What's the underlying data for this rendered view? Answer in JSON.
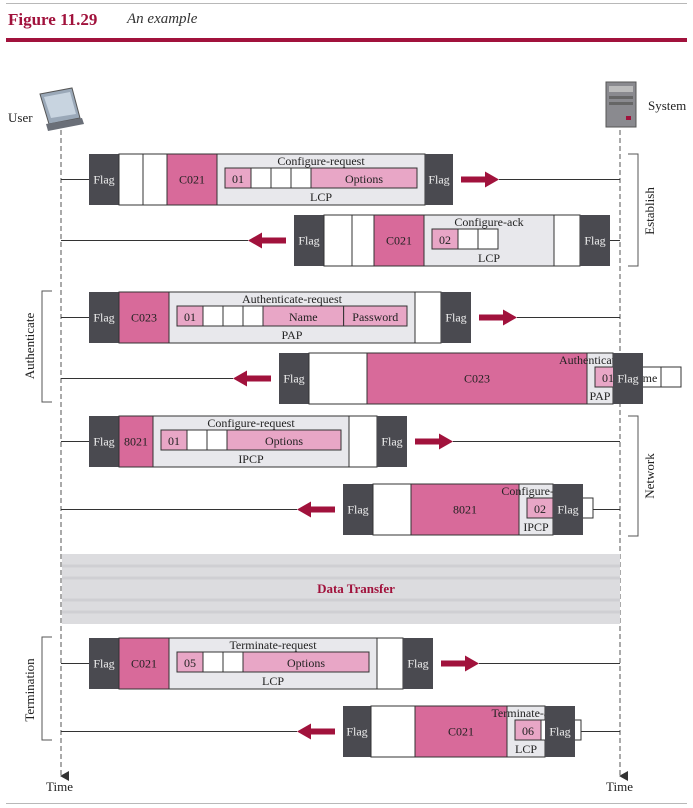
{
  "figure": {
    "number": "Figure 11.29",
    "title": "An example"
  },
  "endpoints": {
    "left": "User",
    "right": "System",
    "time_left": "Time",
    "time_right": "Time"
  },
  "phases": {
    "establish": "Establish",
    "authenticate": "Authenticate",
    "network": "Network",
    "termination": "Termination"
  },
  "data_transfer": "Data Transfer",
  "flag": "Flag",
  "frames": [
    {
      "protocol_value": "C021",
      "message": "Configure-request",
      "code": "01",
      "field1": "Options",
      "field2": "",
      "protocol_name": "LCP"
    },
    {
      "protocol_value": "C021",
      "message": "Configure-ack",
      "code": "02",
      "field1": "",
      "field2": "",
      "protocol_name": "LCP"
    },
    {
      "protocol_value": "C023",
      "message": "Authenticate-request",
      "code": "01",
      "field1": "Name",
      "field2": "Password",
      "protocol_name": "PAP"
    },
    {
      "protocol_value": "C023",
      "message": "Authenticate-ack",
      "code": "01",
      "field1": "Name",
      "field2": "",
      "protocol_name": "PAP"
    },
    {
      "protocol_value": "8021",
      "message": "Configure-request",
      "code": "01",
      "field1": "Options",
      "field2": "",
      "protocol_name": "IPCP"
    },
    {
      "protocol_value": "8021",
      "message": "Configure-ack",
      "code": "02",
      "field1": "",
      "field2": "",
      "protocol_name": "IPCP"
    },
    {
      "protocol_value": "C021",
      "message": "Terminate-request",
      "code": "05",
      "field1": "Options",
      "field2": "",
      "protocol_name": "LCP"
    },
    {
      "protocol_value": "C021",
      "message": "Terminate-ack",
      "code": "06",
      "field1": "",
      "field2": "",
      "protocol_name": "LCP"
    }
  ],
  "colors": {
    "flag": "#4a4a50",
    "protocol": "#d86a9a",
    "packet_bg": "#e8e8ec",
    "field_pink": "#e8a6c6",
    "arrow": "#a1123c",
    "accent": "#a1123c"
  }
}
